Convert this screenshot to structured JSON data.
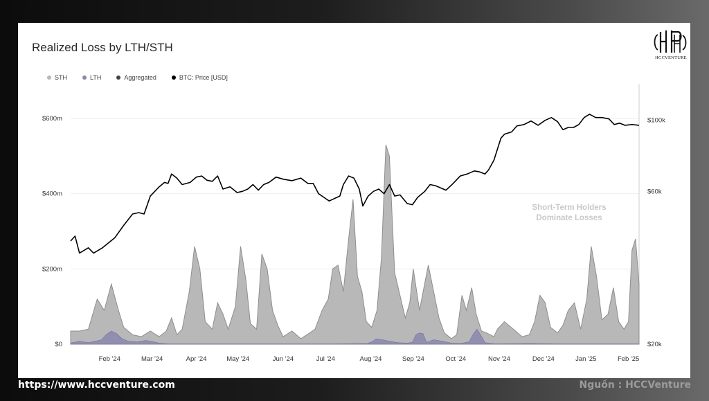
{
  "footer": {
    "url": "https://www.hccventure.com",
    "source": "Nguồn : HCCVenture"
  },
  "logo": {
    "name": "hccventure-logo",
    "text": "HCCVENTURE"
  },
  "colors": {
    "sth": "#b8b8b8",
    "sth_line": "#8e8e8e",
    "lth": "#8a87ad",
    "aggregated": "#444444",
    "btc_price": "#000000",
    "annotation": "#c8c8c8"
  },
  "chart_data": {
    "type": "area",
    "title": "Realized Loss by LTH/STH",
    "legend": [
      "STH",
      "LTH",
      "Aggregated",
      "BTC: Price [USD]"
    ],
    "legend_position": "top-left",
    "annotation": [
      "Short-Term Holders",
      "Dominate Losses"
    ],
    "x_ticks": [
      "Feb '24",
      "Mar '24",
      "Apr '24",
      "May '24",
      "Jun '24",
      "Jul '24",
      "Aug '24",
      "Sep '24",
      "Oct '24",
      "Nov '24",
      "Dec '24",
      "Jan '25",
      "Feb '25"
    ],
    "x_ticks_pos": [
      9.4,
      14.2,
      19.2,
      23.9,
      29.0,
      33.8,
      38.9,
      43.7,
      48.5,
      53.4,
      58.4,
      63.2,
      68.0
    ],
    "x_range": [
      5.0,
      69.2
    ],
    "y_left": {
      "range": [
        0,
        600
      ],
      "ticks": [
        0,
        200,
        400,
        600
      ],
      "tick_labels": [
        "$0",
        "$200m",
        "$400m",
        "$600m"
      ],
      "unit": "USD millions"
    },
    "y_right": {
      "scale": "log",
      "range": [
        20000,
        130000
      ],
      "ticks": [
        20000,
        60000,
        100000
      ],
      "tick_labels": [
        "$20k",
        "$60k",
        "$100k"
      ]
    },
    "grid": true,
    "series": [
      {
        "name": "STH",
        "points": [
          [
            5.0,
            35
          ],
          [
            6.0,
            35
          ],
          [
            7.0,
            40
          ],
          [
            8.0,
            120
          ],
          [
            8.8,
            90
          ],
          [
            9.6,
            160
          ],
          [
            10.4,
            90
          ],
          [
            11.0,
            45
          ],
          [
            12.0,
            25
          ],
          [
            13.0,
            20
          ],
          [
            14.0,
            35
          ],
          [
            15.0,
            20
          ],
          [
            15.8,
            35
          ],
          [
            16.4,
            70
          ],
          [
            17.0,
            25
          ],
          [
            17.6,
            40
          ],
          [
            18.4,
            140
          ],
          [
            19.0,
            260
          ],
          [
            19.6,
            200
          ],
          [
            20.2,
            60
          ],
          [
            21.0,
            40
          ],
          [
            21.6,
            110
          ],
          [
            22.2,
            80
          ],
          [
            22.8,
            40
          ],
          [
            23.6,
            100
          ],
          [
            24.2,
            260
          ],
          [
            24.8,
            170
          ],
          [
            25.3,
            55
          ],
          [
            26.0,
            40
          ],
          [
            26.6,
            240
          ],
          [
            27.2,
            200
          ],
          [
            27.8,
            90
          ],
          [
            28.4,
            50
          ],
          [
            29.0,
            20
          ],
          [
            30.0,
            35
          ],
          [
            31.0,
            15
          ],
          [
            32.0,
            30
          ],
          [
            32.6,
            40
          ],
          [
            33.4,
            90
          ],
          [
            34.1,
            120
          ],
          [
            34.6,
            200
          ],
          [
            35.2,
            210
          ],
          [
            35.8,
            140
          ],
          [
            36.4,
            280
          ],
          [
            36.9,
            385
          ],
          [
            37.4,
            180
          ],
          [
            37.9,
            140
          ],
          [
            38.4,
            60
          ],
          [
            39.0,
            45
          ],
          [
            39.6,
            90
          ],
          [
            40.1,
            230
          ],
          [
            40.6,
            530
          ],
          [
            41.0,
            500
          ],
          [
            41.6,
            190
          ],
          [
            42.2,
            130
          ],
          [
            42.8,
            70
          ],
          [
            43.3,
            110
          ],
          [
            43.7,
            200
          ],
          [
            44.4,
            90
          ],
          [
            44.9,
            150
          ],
          [
            45.4,
            210
          ],
          [
            46.0,
            140
          ],
          [
            46.6,
            70
          ],
          [
            47.2,
            30
          ],
          [
            48.0,
            15
          ],
          [
            48.6,
            25
          ],
          [
            49.2,
            130
          ],
          [
            49.7,
            90
          ],
          [
            50.3,
            150
          ],
          [
            50.8,
            80
          ],
          [
            51.4,
            35
          ],
          [
            52.0,
            30
          ],
          [
            52.8,
            20
          ],
          [
            53.2,
            40
          ],
          [
            54.0,
            60
          ],
          [
            55.0,
            40
          ],
          [
            56.0,
            20
          ],
          [
            56.8,
            25
          ],
          [
            57.4,
            60
          ],
          [
            58.0,
            130
          ],
          [
            58.6,
            110
          ],
          [
            59.2,
            45
          ],
          [
            60.0,
            30
          ],
          [
            60.6,
            50
          ],
          [
            61.2,
            90
          ],
          [
            61.9,
            110
          ],
          [
            62.6,
            40
          ],
          [
            63.3,
            120
          ],
          [
            63.8,
            260
          ],
          [
            64.4,
            180
          ],
          [
            65.0,
            65
          ],
          [
            65.7,
            80
          ],
          [
            66.3,
            150
          ],
          [
            66.9,
            60
          ],
          [
            67.5,
            40
          ],
          [
            68.0,
            60
          ],
          [
            68.4,
            250
          ],
          [
            68.8,
            280
          ],
          [
            69.2,
            160
          ]
        ]
      },
      {
        "name": "LTH",
        "points": [
          [
            5.0,
            3
          ],
          [
            6.0,
            8
          ],
          [
            7.0,
            4
          ],
          [
            8.0,
            9
          ],
          [
            8.5,
            12
          ],
          [
            9.0,
            25
          ],
          [
            9.6,
            35
          ],
          [
            10.2,
            28
          ],
          [
            10.8,
            15
          ],
          [
            11.5,
            8
          ],
          [
            12.5,
            6
          ],
          [
            13.5,
            10
          ],
          [
            14.4,
            6
          ],
          [
            15.0,
            3
          ],
          [
            16.0,
            1
          ],
          [
            20.0,
            1
          ],
          [
            30.0,
            1
          ],
          [
            35.0,
            1
          ],
          [
            38.5,
            2
          ],
          [
            39.0,
            6
          ],
          [
            39.5,
            14
          ],
          [
            40.2,
            12
          ],
          [
            41.0,
            8
          ],
          [
            42.0,
            4
          ],
          [
            43.0,
            3
          ],
          [
            43.6,
            5
          ],
          [
            44.0,
            25
          ],
          [
            44.4,
            30
          ],
          [
            44.8,
            28
          ],
          [
            45.2,
            5
          ],
          [
            46.0,
            12
          ],
          [
            47.0,
            8
          ],
          [
            48.0,
            3
          ],
          [
            49.0,
            2
          ],
          [
            50.0,
            6
          ],
          [
            50.5,
            28
          ],
          [
            50.9,
            40
          ],
          [
            51.3,
            25
          ],
          [
            51.8,
            4
          ],
          [
            53.0,
            1
          ],
          [
            57.0,
            2
          ],
          [
            60.0,
            1
          ],
          [
            69.2,
            1
          ]
        ]
      },
      {
        "name": "BTC: Price [USD]",
        "points": [
          [
            5.0,
            42000
          ],
          [
            5.5,
            43500
          ],
          [
            6.0,
            38500
          ],
          [
            7.0,
            40000
          ],
          [
            7.6,
            38500
          ],
          [
            8.6,
            40000
          ],
          [
            10.0,
            43000
          ],
          [
            11.0,
            47000
          ],
          [
            12.0,
            51000
          ],
          [
            12.7,
            51500
          ],
          [
            13.3,
            51000
          ],
          [
            14.0,
            58000
          ],
          [
            15.0,
            62000
          ],
          [
            15.6,
            64000
          ],
          [
            16.0,
            63500
          ],
          [
            16.4,
            68000
          ],
          [
            17.0,
            66000
          ],
          [
            17.6,
            63000
          ],
          [
            18.5,
            64000
          ],
          [
            19.2,
            66500
          ],
          [
            19.8,
            67000
          ],
          [
            20.4,
            65000
          ],
          [
            21.0,
            64500
          ],
          [
            21.6,
            67000
          ],
          [
            22.2,
            61000
          ],
          [
            23.0,
            62000
          ],
          [
            23.8,
            59500
          ],
          [
            24.4,
            60000
          ],
          [
            25.0,
            61000
          ],
          [
            25.6,
            63000
          ],
          [
            26.2,
            60500
          ],
          [
            26.8,
            63000
          ],
          [
            27.4,
            64000
          ],
          [
            28.2,
            66500
          ],
          [
            29.0,
            65500
          ],
          [
            30.0,
            64800
          ],
          [
            31.0,
            66000
          ],
          [
            31.8,
            63500
          ],
          [
            32.4,
            63500
          ],
          [
            33.0,
            59000
          ],
          [
            33.6,
            57500
          ],
          [
            34.2,
            56000
          ],
          [
            34.8,
            57000
          ],
          [
            35.4,
            58000
          ],
          [
            35.8,
            63000
          ],
          [
            36.4,
            67000
          ],
          [
            37.0,
            66000
          ],
          [
            37.6,
            61000
          ],
          [
            38.0,
            54000
          ],
          [
            38.6,
            58000
          ],
          [
            39.2,
            60000
          ],
          [
            39.8,
            61000
          ],
          [
            40.4,
            59000
          ],
          [
            41.0,
            63000
          ],
          [
            41.6,
            58000
          ],
          [
            42.2,
            58500
          ],
          [
            43.0,
            55000
          ],
          [
            43.6,
            54500
          ],
          [
            44.2,
            57500
          ],
          [
            45.0,
            60000
          ],
          [
            45.6,
            63000
          ],
          [
            46.2,
            62500
          ],
          [
            46.8,
            61500
          ],
          [
            47.4,
            60500
          ],
          [
            48.2,
            63500
          ],
          [
            49.0,
            67000
          ],
          [
            49.8,
            68000
          ],
          [
            50.6,
            69500
          ],
          [
            51.2,
            69000
          ],
          [
            51.8,
            68000
          ],
          [
            52.2,
            70000
          ],
          [
            52.8,
            75000
          ],
          [
            53.6,
            88000
          ],
          [
            54.0,
            90500
          ],
          [
            54.8,
            92000
          ],
          [
            55.4,
            96000
          ],
          [
            56.2,
            97000
          ],
          [
            57.0,
            99500
          ],
          [
            57.8,
            96500
          ],
          [
            58.6,
            100000
          ],
          [
            59.3,
            102000
          ],
          [
            60.0,
            99000
          ],
          [
            60.6,
            93500
          ],
          [
            61.2,
            95000
          ],
          [
            61.8,
            95000
          ],
          [
            62.4,
            97000
          ],
          [
            63.0,
            102000
          ],
          [
            63.6,
            104500
          ],
          [
            64.3,
            102000
          ],
          [
            65.0,
            102000
          ],
          [
            65.8,
            101000
          ],
          [
            66.4,
            97000
          ],
          [
            67.0,
            98000
          ],
          [
            67.6,
            96500
          ],
          [
            68.4,
            97000
          ],
          [
            69.2,
            96500
          ]
        ]
      }
    ]
  }
}
